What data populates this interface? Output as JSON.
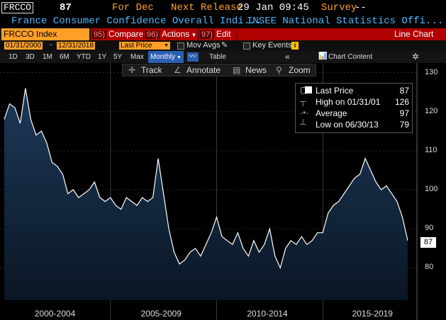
{
  "header": {
    "ticker_short": "FRCCO",
    "last_value": "87",
    "period": "For Dec",
    "next_release_label": "Next Release",
    "next_release": "29 Jan 09:45",
    "survey_label": "Survey",
    "survey_value": "--",
    "description": "France Consumer Confidence Overall Indi...",
    "source": "INSEE National Statistics Offi..."
  },
  "toolbar1": {
    "security": "FRCCO Index",
    "compare_num": "95)",
    "compare_label": "Compare",
    "actions_num": "96)",
    "actions_label": "Actions",
    "edit_num": "97)",
    "edit_label": "Edit",
    "chart_type": "Line Chart"
  },
  "toolbar2": {
    "start_date": "01/31/2000",
    "end_date": "12/31/2018",
    "field": "Last Price",
    "mov_avgs": "Mov Avgs",
    "key_events": "Key Events"
  },
  "toolbar3": {
    "periods": [
      "1D",
      "3D",
      "1M",
      "6M",
      "YTD",
      "1Y",
      "5Y",
      "Max"
    ],
    "frequency": "Monthly",
    "table": "Table",
    "chart_content": "Chart Content"
  },
  "tools": {
    "track": "Track",
    "annotate": "Annotate",
    "news": "News",
    "zoom": "Zoom"
  },
  "legend": {
    "last_label": "Last Price",
    "last_value": "87",
    "high_label": "High on 01/31/01",
    "high_value": "126",
    "avg_label": "Average",
    "avg_value": "97",
    "low_label": "Low on 06/30/13",
    "low_value": "79"
  },
  "colors": {
    "accent_orange": "#ffa028",
    "title_blue": "#4fb8ff",
    "button_red": "#b00000",
    "area_top": "#1d3a5a",
    "area_bottom": "#0a1624",
    "line": "#ffffff"
  },
  "chart_data": {
    "type": "area",
    "y_axis_side": "right",
    "ylim": [
      73,
      131
    ],
    "yticks": [
      80,
      90,
      100,
      110,
      120,
      130
    ],
    "x_range": [
      2000.0,
      2019.0
    ],
    "x_group_labels": [
      "2000-2004",
      "2005-2009",
      "2010-2014",
      "2015-2019"
    ],
    "last_value_tag": "87",
    "series": [
      {
        "name": "Last Price",
        "x": [
          2000.0,
          2000.25,
          2000.5,
          2000.75,
          2001.0,
          2001.25,
          2001.5,
          2001.75,
          2002.0,
          2002.25,
          2002.5,
          2002.75,
          2003.0,
          2003.25,
          2003.5,
          2003.75,
          2004.0,
          2004.25,
          2004.5,
          2004.75,
          2005.0,
          2005.25,
          2005.5,
          2005.75,
          2006.0,
          2006.25,
          2006.5,
          2006.75,
          2007.0,
          2007.25,
          2007.5,
          2007.75,
          2008.0,
          2008.25,
          2008.5,
          2008.75,
          2009.0,
          2009.25,
          2009.5,
          2009.75,
          2010.0,
          2010.25,
          2010.5,
          2010.75,
          2011.0,
          2011.25,
          2011.5,
          2011.75,
          2012.0,
          2012.25,
          2012.5,
          2012.75,
          2013.0,
          2013.25,
          2013.5,
          2013.75,
          2014.0,
          2014.25,
          2014.5,
          2014.75,
          2015.0,
          2015.25,
          2015.5,
          2015.75,
          2016.0,
          2016.25,
          2016.5,
          2016.75,
          2017.0,
          2017.25,
          2017.5,
          2017.75,
          2018.0,
          2018.25,
          2018.5,
          2018.75,
          2019.0
        ],
        "values": [
          118,
          122,
          121,
          117,
          126,
          118,
          114,
          115,
          112,
          107,
          106,
          104,
          99,
          100,
          98,
          99,
          100,
          102,
          98,
          97,
          98,
          96,
          95,
          98,
          97,
          96,
          98,
          97,
          98,
          108,
          99,
          90,
          84,
          81,
          82,
          84,
          85,
          83,
          86,
          89,
          93,
          88,
          87,
          86,
          89,
          85,
          83,
          87,
          84,
          86,
          90,
          83,
          80,
          85,
          87,
          86,
          88,
          86,
          87,
          89,
          89,
          94,
          96,
          97,
          99,
          101,
          103,
          104,
          108,
          105,
          102,
          100,
          101,
          99,
          97,
          93,
          87
        ]
      }
    ]
  }
}
